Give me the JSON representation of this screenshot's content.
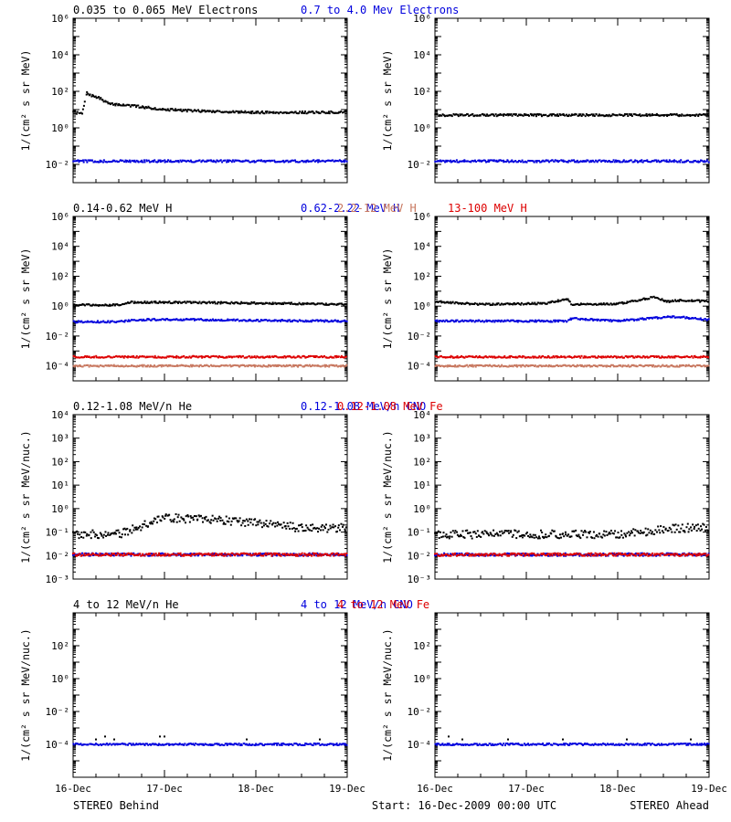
{
  "chart_data": [
    {
      "type": "scatter",
      "row": "electrons",
      "scale": "log",
      "headers": [
        {
          "text": "0.035 to 0.065 MeV Electrons",
          "color": "#000000"
        },
        {
          "text": "0.7 to 4.0 Mev Electrons",
          "color": "#0000dd"
        }
      ],
      "ylabel": "1/(cm² s sr MeV)",
      "ylim": [
        0.001,
        1000000
      ],
      "y_ticks": [
        {
          "value": 0.01,
          "label": "10⁻²"
        },
        {
          "value": 1,
          "label": "10⁰"
        },
        {
          "value": 100,
          "label": "10²"
        },
        {
          "value": 10000,
          "label": "10⁴"
        },
        {
          "value": 1000000,
          "label": "10⁶"
        }
      ],
      "xlim": [
        0,
        3
      ],
      "x_ticks": [
        "16-Dec",
        "17-Dec",
        "18-Dec",
        "19-Dec"
      ],
      "panels": [
        {
          "spacecraft": "STEREO Behind",
          "series": [
            {
              "name": "0.035 to 0.065 MeV Electrons",
              "color": "#000000",
              "x": [
                0,
                0.1,
                0.15,
                0.2,
                0.3,
                0.4,
                0.55,
                0.75,
                1.0,
                1.5,
                2.0,
                2.5,
                3.0
              ],
              "y": [
                7,
                6,
                80,
                60,
                40,
                20,
                18,
                14,
                10,
                8,
                7,
                7,
                7
              ]
            },
            {
              "name": "0.7 to 4.0 Mev Electrons",
              "color": "#0000dd",
              "x": [
                0,
                1,
                2,
                3
              ],
              "y": [
                0.015,
                0.015,
                0.015,
                0.015
              ]
            }
          ]
        },
        {
          "spacecraft": "STEREO Ahead",
          "series": [
            {
              "name": "0.035 to 0.065 MeV Electrons",
              "color": "#000000",
              "x": [
                0,
                1,
                2,
                3
              ],
              "y": [
                5,
                5,
                5,
                5
              ]
            },
            {
              "name": "0.7 to 4.0 Mev Electrons",
              "color": "#0000dd",
              "x": [
                0,
                1,
                2,
                3
              ],
              "y": [
                0.015,
                0.015,
                0.015,
                0.015
              ]
            }
          ]
        }
      ]
    },
    {
      "type": "scatter",
      "row": "protons",
      "scale": "log",
      "headers": [
        {
          "text": "0.14-0.62 MeV H",
          "color": "#000000"
        },
        {
          "text": "0.62-2.22 MeV H",
          "color": "#0000dd"
        },
        {
          "text": "2.2-12 MeV H",
          "color": "#c87860"
        },
        {
          "text": "13-100 MeV H",
          "color": "#dd0000"
        }
      ],
      "ylabel": "1/(cm² s sr MeV)",
      "ylim": [
        1e-05,
        1000000
      ],
      "y_ticks": [
        {
          "value": 0.0001,
          "label": "10⁻⁴"
        },
        {
          "value": 0.01,
          "label": "10⁻²"
        },
        {
          "value": 1,
          "label": "10⁰"
        },
        {
          "value": 100,
          "label": "10²"
        },
        {
          "value": 10000,
          "label": "10⁴"
        },
        {
          "value": 1000000,
          "label": "10⁶"
        }
      ],
      "xlim": [
        0,
        3
      ],
      "x_ticks": [
        "16-Dec",
        "17-Dec",
        "18-Dec",
        "19-Dec"
      ],
      "panels": [
        {
          "spacecraft": "STEREO Behind",
          "series": [
            {
              "name": "0.14-0.62 MeV H",
              "color": "#000000",
              "x": [
                0,
                0.5,
                0.6,
                1.0,
                2.0,
                3.0
              ],
              "y": [
                1.2,
                1.2,
                1.8,
                1.8,
                1.6,
                1.3
              ]
            },
            {
              "name": "0.62-2.22 MeV H",
              "color": "#0000dd",
              "x": [
                0,
                0.5,
                0.7,
                1.0,
                2.0,
                3.0
              ],
              "y": [
                0.09,
                0.09,
                0.12,
                0.13,
                0.11,
                0.1
              ]
            },
            {
              "name": "2.2-12 MeV H",
              "color": "#c87860",
              "x": [
                0,
                1,
                2,
                3
              ],
              "y": [
                0.0001,
                0.0001,
                0.0001,
                0.0001
              ]
            },
            {
              "name": "13-100 MeV H",
              "color": "#dd0000",
              "x": [
                0,
                1,
                2,
                3
              ],
              "y": [
                0.0004,
                0.0004,
                0.0004,
                0.0004
              ]
            }
          ]
        },
        {
          "spacecraft": "STEREO Ahead",
          "series": [
            {
              "name": "0.14-0.62 MeV H",
              "color": "#000000",
              "x": [
                0,
                0.5,
                1.2,
                1.45,
                1.5,
                2.0,
                2.4,
                2.55,
                2.7,
                3.0
              ],
              "y": [
                2,
                1.3,
                1.5,
                3,
                1.3,
                1.4,
                4,
                2,
                2.5,
                2
              ]
            },
            {
              "name": "0.62-2.22 MeV H",
              "color": "#0000dd",
              "x": [
                0,
                1.45,
                1.5,
                2.0,
                2.6,
                3.0
              ],
              "y": [
                0.1,
                0.1,
                0.15,
                0.1,
                0.2,
                0.12
              ]
            },
            {
              "name": "2.2-12 MeV H",
              "color": "#c87860",
              "x": [
                0,
                1,
                2,
                3
              ],
              "y": [
                0.0001,
                0.0001,
                0.0001,
                0.0001
              ]
            },
            {
              "name": "13-100 MeV H",
              "color": "#dd0000",
              "x": [
                0,
                1,
                2,
                3
              ],
              "y": [
                0.0004,
                0.0004,
                0.0004,
                0.0004
              ]
            }
          ]
        }
      ]
    },
    {
      "type": "scatter",
      "row": "suprathermal",
      "scale": "log",
      "headers": [
        {
          "text": "0.12-1.08 MeV/n He",
          "color": "#000000"
        },
        {
          "text": "0.12-1.08 MeV/n CNO",
          "color": "#0000dd"
        },
        {
          "text": "0.12-1.08 MeV Fe",
          "color": "#dd0000"
        }
      ],
      "ylabel": "1/(cm² s sr MeV/nuc.)",
      "ylim": [
        0.001,
        10000
      ],
      "y_ticks": [
        {
          "value": 0.001,
          "label": "10⁻³"
        },
        {
          "value": 0.01,
          "label": "10⁻²"
        },
        {
          "value": 0.1,
          "label": "10⁻¹"
        },
        {
          "value": 1,
          "label": "10⁰"
        },
        {
          "value": 10,
          "label": "10¹"
        },
        {
          "value": 100,
          "label": "10²"
        },
        {
          "value": 1000,
          "label": "10³"
        },
        {
          "value": 10000,
          "label": "10⁴"
        }
      ],
      "xlim": [
        0,
        3
      ],
      "x_ticks": [
        "16-Dec",
        "17-Dec",
        "18-Dec",
        "19-Dec"
      ],
      "panels": [
        {
          "spacecraft": "STEREO Behind",
          "series": [
            {
              "name": "0.12-1.08 MeV/n He",
              "color": "#000000",
              "x": [
                0,
                0.5,
                0.7,
                1.0,
                1.5,
                2.0,
                2.5,
                3.0
              ],
              "y": [
                0.08,
                0.08,
                0.15,
                0.4,
                0.35,
                0.25,
                0.15,
                0.15
              ]
            },
            {
              "name": "0.12-1.08 MeV/n CNO",
              "color": "#0000dd",
              "x": [
                0,
                1,
                2,
                3
              ],
              "y": [
                0.011,
                0.011,
                0.011,
                0.011
              ]
            },
            {
              "name": "0.12-1.08 MeV Fe",
              "color": "#dd0000",
              "x": [
                0,
                1,
                2,
                3
              ],
              "y": [
                0.011,
                0.011,
                0.011,
                0.011
              ]
            }
          ]
        },
        {
          "spacecraft": "STEREO Ahead",
          "series": [
            {
              "name": "0.12-1.08 MeV/n He",
              "color": "#000000",
              "x": [
                0,
                1,
                2,
                2.7,
                3.0
              ],
              "y": [
                0.08,
                0.08,
                0.08,
                0.15,
                0.15
              ]
            },
            {
              "name": "0.12-1.08 MeV/n CNO",
              "color": "#0000dd",
              "x": [
                0,
                1,
                2,
                3
              ],
              "y": [
                0.011,
                0.011,
                0.011,
                0.011
              ]
            },
            {
              "name": "0.12-1.08 MeV Fe",
              "color": "#dd0000",
              "x": [
                0,
                1,
                2,
                3
              ],
              "y": [
                0.011,
                0.011,
                0.011,
                0.011
              ]
            }
          ]
        }
      ]
    },
    {
      "type": "scatter",
      "row": "sept",
      "scale": "log",
      "headers": [
        {
          "text": "4 to 12 MeV/n He",
          "color": "#000000"
        },
        {
          "text": "4 to 12 MeV/n CNO",
          "color": "#0000dd"
        },
        {
          "text": "4 to 12 MeV Fe",
          "color": "#dd0000"
        }
      ],
      "ylabel": "1/(cm² s sr MeV/nuc.)",
      "ylim": [
        1e-06,
        10000
      ],
      "y_ticks": [
        {
          "value": 0.0001,
          "label": "10⁻⁴"
        },
        {
          "value": 0.01,
          "label": "10⁻²"
        },
        {
          "value": 1,
          "label": "10⁰"
        },
        {
          "value": 100,
          "label": "10²"
        }
      ],
      "xlim": [
        0,
        3
      ],
      "x_ticks": [
        "16-Dec",
        "17-Dec",
        "18-Dec",
        "19-Dec"
      ],
      "panels": [
        {
          "spacecraft": "STEREO Behind",
          "series": [
            {
              "name": "4 to 12 MeV/n He",
              "color": "#000000",
              "x": [
                0.25,
                0.35,
                0.45,
                0.95,
                1.0,
                1.9,
                2.7
              ],
              "y": [
                0.0002,
                0.0003,
                0.0002,
                0.0003,
                0.0003,
                0.0002,
                0.0002
              ]
            },
            {
              "name": "4 to 12 MeV/n CNO",
              "color": "#0000dd",
              "x": [
                0,
                1,
                2,
                3
              ],
              "y": [
                0.0001,
                0.0001,
                0.0001,
                0.0001
              ]
            }
          ]
        },
        {
          "spacecraft": "STEREO Ahead",
          "series": [
            {
              "name": "4 to 12 MeV/n He",
              "color": "#000000",
              "x": [
                0.15,
                0.3,
                0.8,
                1.4,
                2.1,
                2.8
              ],
              "y": [
                0.0003,
                0.0002,
                0.0002,
                0.0002,
                0.0002,
                0.0002
              ]
            },
            {
              "name": "4 to 12 MeV/n CNO",
              "color": "#0000dd",
              "x": [
                0,
                1,
                2,
                3
              ],
              "y": [
                0.0001,
                0.0001,
                0.0001,
                0.0001
              ]
            }
          ]
        }
      ]
    }
  ],
  "footer": {
    "left": "STEREO Behind",
    "center": "Start: 16-Dec-2009 00:00 UTC",
    "right": "STEREO Ahead"
  }
}
